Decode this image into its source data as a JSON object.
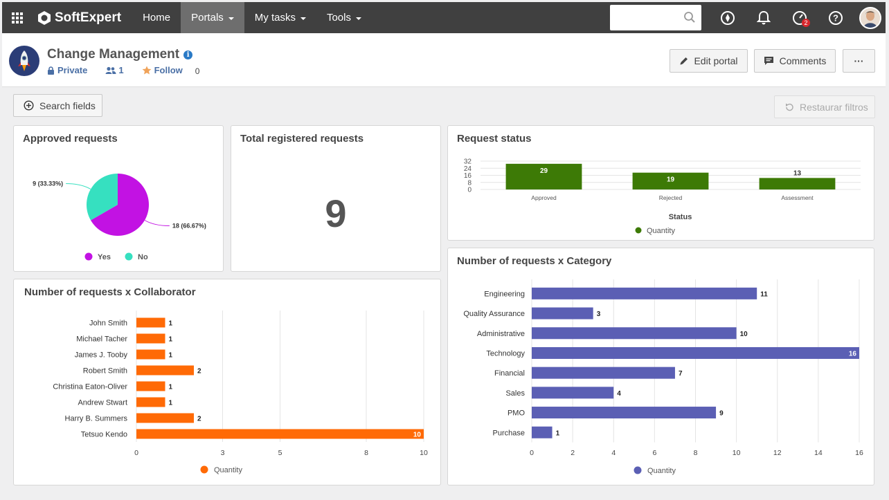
{
  "nav": {
    "brand": "SoftExpert",
    "items": [
      {
        "label": "Home",
        "caret": false,
        "active": false
      },
      {
        "label": "Portals",
        "caret": true,
        "active": true
      },
      {
        "label": "My tasks",
        "caret": true,
        "active": false
      },
      {
        "label": "Tools",
        "caret": true,
        "active": false
      }
    ],
    "search_value": "",
    "notifications_badge": "2"
  },
  "portal": {
    "title": "Change Management",
    "privacy": "Private",
    "members": "1",
    "follow": "Follow",
    "followers": "0",
    "edit_label": "Edit portal",
    "comments_label": "Comments",
    "more_label": "···"
  },
  "toolbar": {
    "search_fields": "Search fields",
    "reset_filters": "Restaurar filtros"
  },
  "colors": {
    "green": "#3d7a06",
    "orange": "#ff6a06",
    "indigo": "#5b5fb4",
    "purple": "#c212e3",
    "teal": "#36e0c0"
  },
  "chart_data": [
    {
      "id": "approved",
      "type": "pie",
      "title": "Approved requests",
      "slices": [
        {
          "name": "Yes",
          "value": 18,
          "label": "18 (66.67%)",
          "color": "#c212e3"
        },
        {
          "name": "No",
          "value": 9,
          "label": "9 (33.33%)",
          "color": "#36e0c0"
        }
      ],
      "legend": "bottom"
    },
    {
      "id": "total",
      "type": "kpi",
      "title": "Total registered requests",
      "value": "9"
    },
    {
      "id": "status",
      "type": "bar",
      "title": "Request status",
      "categories": [
        "Approved",
        "Rejected",
        "Assessment"
      ],
      "values": [
        29,
        19,
        13
      ],
      "xlabel": "Status",
      "yticks": [
        "0",
        "8",
        "16",
        "24",
        "32"
      ],
      "ylim": [
        0,
        32
      ],
      "series_name": "Quantity",
      "color": "#3d7a06",
      "legend": "bottom"
    },
    {
      "id": "collaborator",
      "type": "bar",
      "orientation": "horizontal",
      "title": "Number of requests x Collaborator",
      "categories": [
        "John Smith",
        "Michael Tacher",
        "James J. Tooby",
        "Robert Smith",
        "Christina Eaton-Oliver",
        "Andrew Stwart",
        "Harry B. Summers",
        "Tetsuo Kendo"
      ],
      "values": [
        1,
        1,
        1,
        2,
        1,
        1,
        2,
        10
      ],
      "xticks": [
        "0",
        "3",
        "5",
        "8",
        "10"
      ],
      "xlim": [
        0,
        10
      ],
      "series_name": "Quantity",
      "color": "#ff6a06",
      "legend": "bottom"
    },
    {
      "id": "category",
      "type": "bar",
      "orientation": "horizontal",
      "title": "Number of requests x Category",
      "categories": [
        "Engineering",
        "Quality Assurance",
        "Administrative",
        "Technology",
        "Financial",
        "Sales",
        "PMO",
        "Purchase"
      ],
      "values": [
        11,
        3,
        10,
        16,
        7,
        4,
        9,
        1
      ],
      "xticks": [
        "0",
        "2",
        "4",
        "6",
        "8",
        "10",
        "12",
        "14",
        "16"
      ],
      "xlim": [
        0,
        16
      ],
      "series_name": "Quantity",
      "color": "#5b5fb4",
      "legend": "bottom"
    }
  ]
}
